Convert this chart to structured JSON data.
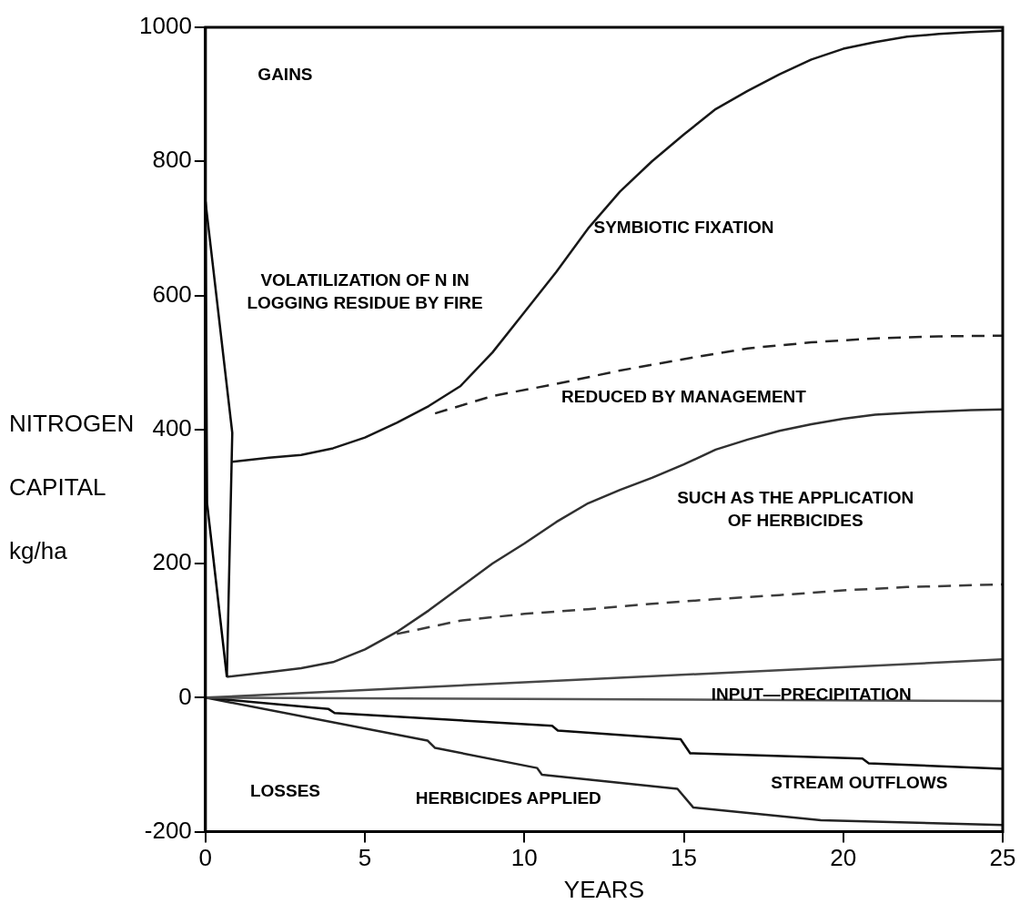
{
  "chart_data": {
    "type": "line",
    "xlabel": "YEARS",
    "ylabel": "NITROGEN CAPITAL kg/ha",
    "xlim": [
      0,
      25
    ],
    "xticks": [
      0,
      5,
      10,
      15,
      20,
      25
    ],
    "ylim": [
      -200,
      1000
    ],
    "yticks": [
      -200,
      0,
      200,
      400,
      600,
      800,
      1000
    ],
    "grid": false,
    "legend": false,
    "marker": "none",
    "series": [
      {
        "color": "#000000",
        "line_style": "solid",
        "x": [
          0,
          0.05,
          0.67
        ],
        "values": [
          740,
          290,
          31
        ]
      },
      {
        "color": "#0c0c0c",
        "line_style": "solid",
        "x": [
          0,
          0.84,
          0.67
        ],
        "values": [
          740,
          395,
          31
        ]
      },
      {
        "color": "#181818",
        "line_style": "solid",
        "x": [
          0.84,
          2,
          3,
          4,
          5,
          6,
          7,
          8,
          9,
          10,
          11,
          12,
          13,
          14,
          15,
          16,
          17,
          18,
          19,
          20,
          21,
          22,
          23,
          24,
          25
        ],
        "values": [
          352,
          358,
          362,
          372,
          388,
          410,
          435,
          465,
          515,
          575,
          635,
          700,
          755,
          800,
          840,
          878,
          905,
          930,
          952,
          968,
          978,
          986,
          990,
          993,
          995
        ]
      },
      {
        "color": "#242424",
        "line_style": "dashed",
        "x": [
          7.2,
          9,
          11,
          13,
          15,
          17,
          19,
          21,
          23,
          25
        ],
        "values": [
          424,
          450,
          468,
          488,
          505,
          521,
          530,
          536,
          539,
          540
        ]
      },
      {
        "color": "#303030",
        "line_style": "solid",
        "x": [
          0.67,
          2,
          3,
          4,
          5,
          6,
          7,
          8,
          9,
          10,
          11,
          12,
          13,
          14,
          15,
          16,
          17,
          18,
          19,
          20,
          21,
          22,
          23,
          24,
          25
        ],
        "values": [
          31,
          38,
          44,
          53,
          72,
          98,
          130,
          165,
          200,
          230,
          262,
          290,
          310,
          328,
          348,
          370,
          385,
          398,
          408,
          416,
          422,
          425,
          427,
          429,
          430
        ]
      },
      {
        "color": "#3c3c3c",
        "line_style": "dashed",
        "x": [
          6,
          7,
          8,
          10,
          12,
          14,
          16,
          18,
          20,
          22,
          25
        ],
        "values": [
          95,
          105,
          115,
          125,
          132,
          140,
          147,
          153,
          160,
          165,
          169
        ]
      },
      {
        "color": "#484848",
        "line_style": "solid",
        "x": [
          0,
          25
        ],
        "values": [
          0,
          57
        ]
      },
      {
        "color": "#545454",
        "line_style": "solid",
        "x": [
          0,
          25
        ],
        "values": [
          0,
          -5
        ]
      },
      {
        "color": "#0c0c0c",
        "line_style": "solid",
        "x": [
          0,
          3.86,
          4.05,
          10.87,
          11.05,
          14.9,
          15.2,
          20.6,
          20.8,
          25
        ],
        "values": [
          0,
          -17,
          -23,
          -42,
          -49,
          -62,
          -83,
          -91,
          -98,
          -106
        ]
      },
      {
        "color": "#242424",
        "line_style": "solid",
        "x": [
          0,
          6.96,
          7.2,
          10.4,
          10.55,
          14.8,
          15.3,
          19.3,
          25
        ],
        "values": [
          0,
          -64,
          -75,
          -105,
          -115,
          -136,
          -164,
          -183,
          -190
        ]
      }
    ],
    "annotations": [
      "GAINS",
      "LOSSES",
      "VOLATILIZATION OF N IN LOGGING RESIDUE BY FIRE",
      "SYMBIOTIC FIXATION",
      "REDUCED BY MANAGEMENT",
      "SUCH AS THE APPLICATION OF HERBICIDES",
      "INPUT—PRECIPITATION",
      "STREAM OUTFLOWS",
      "HERBICIDES APPLIED"
    ]
  }
}
